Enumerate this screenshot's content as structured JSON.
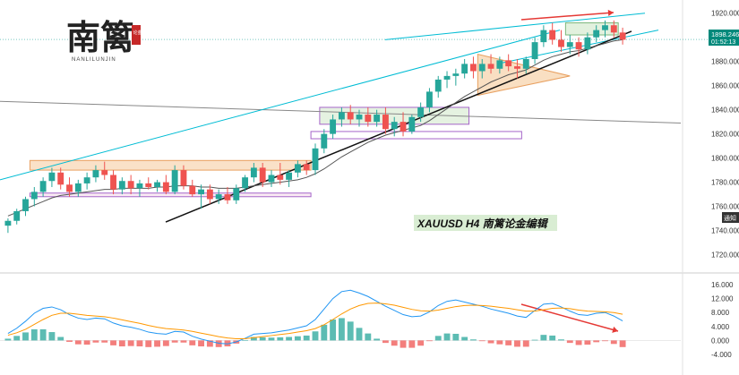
{
  "header": {
    "logo_text": "南篱",
    "logo_sub": "NANLILUNJIN",
    "seal_text": "论金"
  },
  "instrument": {
    "label": "XAUUSD  H4  南篱论金编辑",
    "price_label": "1898.246",
    "countdown": "01:52:13",
    "notify": "通知"
  },
  "colors": {
    "bull": "#26a69a",
    "bear": "#ef5350",
    "channel": "#00bcd4",
    "trend": "#111111",
    "long_line": "#888888",
    "ma": "#555555",
    "macd_line": "#2196f3",
    "signal_line": "#ff9800",
    "hist_pos": "#26a69a",
    "hist_neg": "#ef5350",
    "arrow": "#e53935",
    "box_orange": "#f5c99a",
    "box_green": "#cfe8c8",
    "box_purple": "#a565c9"
  },
  "chart_data": [
    {
      "type": "candlestick",
      "title": "XAUUSD H4",
      "ylim": [
        1710,
        1925
      ],
      "y_ticks": [
        1920.0,
        1900.0,
        1880.0,
        1860.0,
        1840.0,
        1820.0,
        1800.0,
        1780.0,
        1760.0,
        1740.0,
        1720.0
      ],
      "last_price": 1898.246,
      "candles": [
        {
          "o": 1744,
          "h": 1750,
          "l": 1738,
          "c": 1748
        },
        {
          "o": 1748,
          "h": 1758,
          "l": 1745,
          "c": 1756
        },
        {
          "o": 1756,
          "h": 1768,
          "l": 1752,
          "c": 1766
        },
        {
          "o": 1766,
          "h": 1776,
          "l": 1760,
          "c": 1772
        },
        {
          "o": 1772,
          "h": 1784,
          "l": 1768,
          "c": 1781
        },
        {
          "o": 1781,
          "h": 1792,
          "l": 1776,
          "c": 1788
        },
        {
          "o": 1788,
          "h": 1792,
          "l": 1774,
          "c": 1778
        },
        {
          "o": 1778,
          "h": 1784,
          "l": 1768,
          "c": 1772
        },
        {
          "o": 1772,
          "h": 1782,
          "l": 1768,
          "c": 1779
        },
        {
          "o": 1779,
          "h": 1788,
          "l": 1774,
          "c": 1784
        },
        {
          "o": 1784,
          "h": 1794,
          "l": 1780,
          "c": 1790
        },
        {
          "o": 1790,
          "h": 1797,
          "l": 1782,
          "c": 1786
        },
        {
          "o": 1786,
          "h": 1790,
          "l": 1770,
          "c": 1774
        },
        {
          "o": 1774,
          "h": 1784,
          "l": 1770,
          "c": 1781
        },
        {
          "o": 1781,
          "h": 1786,
          "l": 1770,
          "c": 1775
        },
        {
          "o": 1775,
          "h": 1782,
          "l": 1768,
          "c": 1779
        },
        {
          "o": 1779,
          "h": 1784,
          "l": 1774,
          "c": 1776
        },
        {
          "o": 1776,
          "h": 1782,
          "l": 1772,
          "c": 1780
        },
        {
          "o": 1780,
          "h": 1786,
          "l": 1770,
          "c": 1772
        },
        {
          "o": 1772,
          "h": 1794,
          "l": 1770,
          "c": 1790
        },
        {
          "o": 1790,
          "h": 1794,
          "l": 1774,
          "c": 1777
        },
        {
          "o": 1777,
          "h": 1782,
          "l": 1768,
          "c": 1770
        },
        {
          "o": 1770,
          "h": 1778,
          "l": 1758,
          "c": 1774
        },
        {
          "o": 1774,
          "h": 1778,
          "l": 1762,
          "c": 1766
        },
        {
          "o": 1766,
          "h": 1774,
          "l": 1762,
          "c": 1770
        },
        {
          "o": 1770,
          "h": 1776,
          "l": 1762,
          "c": 1765
        },
        {
          "o": 1765,
          "h": 1778,
          "l": 1762,
          "c": 1775
        },
        {
          "o": 1775,
          "h": 1786,
          "l": 1772,
          "c": 1784
        },
        {
          "o": 1784,
          "h": 1796,
          "l": 1780,
          "c": 1792
        },
        {
          "o": 1792,
          "h": 1796,
          "l": 1776,
          "c": 1780
        },
        {
          "o": 1780,
          "h": 1790,
          "l": 1776,
          "c": 1786
        },
        {
          "o": 1786,
          "h": 1796,
          "l": 1778,
          "c": 1782
        },
        {
          "o": 1782,
          "h": 1790,
          "l": 1776,
          "c": 1788
        },
        {
          "o": 1788,
          "h": 1798,
          "l": 1784,
          "c": 1795
        },
        {
          "o": 1795,
          "h": 1798,
          "l": 1786,
          "c": 1790
        },
        {
          "o": 1790,
          "h": 1812,
          "l": 1786,
          "c": 1808
        },
        {
          "o": 1808,
          "h": 1824,
          "l": 1804,
          "c": 1820
        },
        {
          "o": 1820,
          "h": 1836,
          "l": 1816,
          "c": 1832
        },
        {
          "o": 1832,
          "h": 1842,
          "l": 1826,
          "c": 1838
        },
        {
          "o": 1838,
          "h": 1844,
          "l": 1828,
          "c": 1832
        },
        {
          "o": 1832,
          "h": 1840,
          "l": 1826,
          "c": 1836
        },
        {
          "o": 1836,
          "h": 1842,
          "l": 1826,
          "c": 1830
        },
        {
          "o": 1830,
          "h": 1840,
          "l": 1826,
          "c": 1836
        },
        {
          "o": 1836,
          "h": 1842,
          "l": 1820,
          "c": 1824
        },
        {
          "o": 1824,
          "h": 1834,
          "l": 1818,
          "c": 1830
        },
        {
          "o": 1830,
          "h": 1838,
          "l": 1818,
          "c": 1822
        },
        {
          "o": 1822,
          "h": 1836,
          "l": 1820,
          "c": 1834
        },
        {
          "o": 1834,
          "h": 1846,
          "l": 1830,
          "c": 1842
        },
        {
          "o": 1842,
          "h": 1858,
          "l": 1838,
          "c": 1855
        },
        {
          "o": 1855,
          "h": 1868,
          "l": 1850,
          "c": 1865
        },
        {
          "o": 1865,
          "h": 1872,
          "l": 1858,
          "c": 1868
        },
        {
          "o": 1868,
          "h": 1874,
          "l": 1860,
          "c": 1870
        },
        {
          "o": 1870,
          "h": 1882,
          "l": 1866,
          "c": 1878
        },
        {
          "o": 1878,
          "h": 1884,
          "l": 1866,
          "c": 1872
        },
        {
          "o": 1872,
          "h": 1882,
          "l": 1866,
          "c": 1878
        },
        {
          "o": 1878,
          "h": 1886,
          "l": 1870,
          "c": 1874
        },
        {
          "o": 1874,
          "h": 1884,
          "l": 1870,
          "c": 1881
        },
        {
          "o": 1881,
          "h": 1886,
          "l": 1872,
          "c": 1876
        },
        {
          "o": 1876,
          "h": 1882,
          "l": 1866,
          "c": 1874
        },
        {
          "o": 1874,
          "h": 1884,
          "l": 1870,
          "c": 1882
        },
        {
          "o": 1882,
          "h": 1900,
          "l": 1878,
          "c": 1896
        },
        {
          "o": 1896,
          "h": 1910,
          "l": 1892,
          "c": 1906
        },
        {
          "o": 1906,
          "h": 1912,
          "l": 1894,
          "c": 1898
        },
        {
          "o": 1898,
          "h": 1906,
          "l": 1888,
          "c": 1892
        },
        {
          "o": 1892,
          "h": 1902,
          "l": 1886,
          "c": 1896
        },
        {
          "o": 1896,
          "h": 1900,
          "l": 1884,
          "c": 1890
        },
        {
          "o": 1890,
          "h": 1904,
          "l": 1886,
          "c": 1900
        },
        {
          "o": 1900,
          "h": 1910,
          "l": 1896,
          "c": 1906
        },
        {
          "o": 1906,
          "h": 1914,
          "l": 1900,
          "c": 1910
        },
        {
          "o": 1910,
          "h": 1914,
          "l": 1900,
          "c": 1904
        },
        {
          "o": 1904,
          "h": 1908,
          "l": 1894,
          "c": 1898
        }
      ],
      "moving_average": [
        1752,
        1755,
        1758,
        1761,
        1764,
        1767,
        1769,
        1770,
        1771,
        1772,
        1773,
        1774,
        1774,
        1775,
        1775,
        1775,
        1775,
        1776,
        1776,
        1777,
        1777,
        1777,
        1776,
        1776,
        1775,
        1775,
        1775,
        1776,
        1777,
        1778,
        1779,
        1780,
        1781,
        1782,
        1784,
        1787,
        1791,
        1796,
        1801,
        1805,
        1809,
        1813,
        1816,
        1819,
        1821,
        1823,
        1825,
        1827,
        1831,
        1836,
        1841,
        1846,
        1851,
        1855,
        1859,
        1863,
        1866,
        1869,
        1871,
        1873,
        1877,
        1881,
        1884,
        1886,
        1888,
        1889,
        1891,
        1893,
        1895,
        1897,
        1898
      ],
      "annotations": [
        "rising channel",
        "support trendline",
        "long-term descending line",
        "consolidation boxes",
        "rising wedge",
        "bearish divergence arrow"
      ]
    },
    {
      "type": "macd",
      "ylim": [
        -4,
        16
      ],
      "y_ticks": [
        16.0,
        12.0,
        8.0,
        4.0,
        0.0,
        -4.0
      ],
      "macd": [
        2.0,
        3.5,
        5.5,
        7.8,
        9.2,
        9.6,
        8.8,
        7.4,
        6.4,
        6.0,
        6.4,
        6.2,
        5.0,
        4.2,
        3.8,
        3.2,
        2.4,
        2.0,
        1.8,
        2.6,
        2.4,
        1.2,
        0.4,
        -0.2,
        -0.8,
        -1.0,
        -0.4,
        0.6,
        1.8,
        2.0,
        2.2,
        2.6,
        3.0,
        3.6,
        4.2,
        6.0,
        9.0,
        12.0,
        14.0,
        14.4,
        13.6,
        12.6,
        11.2,
        9.8,
        8.6,
        7.4,
        6.8,
        7.0,
        8.2,
        10.0,
        11.2,
        11.6,
        11.0,
        10.4,
        9.8,
        9.0,
        8.4,
        7.8,
        7.0,
        6.6,
        8.6,
        10.4,
        10.6,
        9.6,
        8.4,
        7.4,
        7.2,
        7.8,
        8.0,
        7.0,
        5.6
      ],
      "signal": [
        1.5,
        2.2,
        3.2,
        4.6,
        6.0,
        7.2,
        7.8,
        7.8,
        7.5,
        7.2,
        7.0,
        6.8,
        6.4,
        5.9,
        5.4,
        4.9,
        4.3,
        3.8,
        3.4,
        3.2,
        3.0,
        2.6,
        2.1,
        1.6,
        1.1,
        0.7,
        0.5,
        0.5,
        0.8,
        1.1,
        1.4,
        1.7,
        2.0,
        2.4,
        2.8,
        3.4,
        4.5,
        6.0,
        7.6,
        9.0,
        10.0,
        10.6,
        10.7,
        10.5,
        10.1,
        9.5,
        8.9,
        8.5,
        8.4,
        8.7,
        9.2,
        9.7,
        10.0,
        10.1,
        10.0,
        9.8,
        9.5,
        9.2,
        8.8,
        8.4,
        8.4,
        8.8,
        9.2,
        9.3,
        9.1,
        8.7,
        8.4,
        8.3,
        8.2,
        8.0,
        7.5
      ]
    }
  ]
}
